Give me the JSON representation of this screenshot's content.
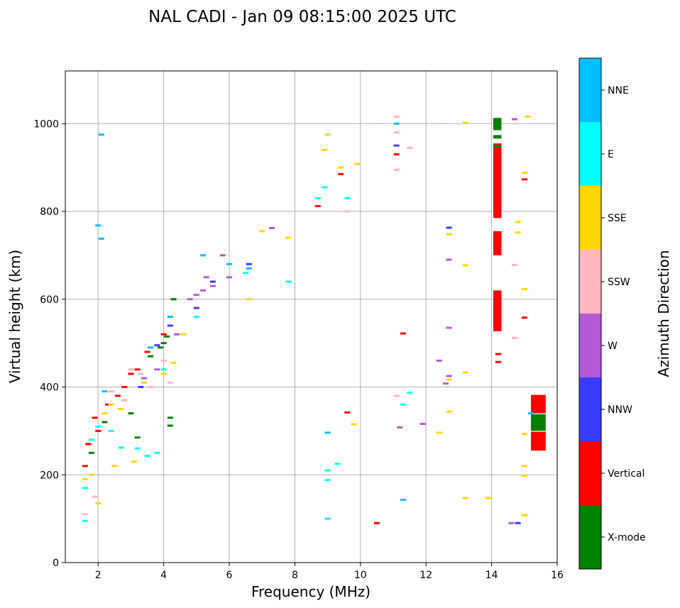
{
  "chart_data": {
    "type": "scatter",
    "title": "NAL CADI - Jan 09 08:15:00 2025 UTC",
    "xlabel": "Frequency (MHz)",
    "ylabel": "Virtual height (km)",
    "xlim": [
      1,
      16
    ],
    "ylim": [
      0,
      1120
    ],
    "xticks": [
      2,
      4,
      6,
      8,
      10,
      12,
      14,
      16
    ],
    "yticks": [
      0,
      200,
      400,
      600,
      800,
      1000
    ],
    "grid": true,
    "colorbar": {
      "title": "Azimuth Direction",
      "categories": [
        {
          "name": "X-mode",
          "color": "#008000"
        },
        {
          "name": "Vertical",
          "color": "#ff0000"
        },
        {
          "name": "NNW",
          "color": "#3a3aff"
        },
        {
          "name": "W",
          "color": "#b55ad6"
        },
        {
          "name": "SSW",
          "color": "#ffb6c1"
        },
        {
          "name": "SSE",
          "color": "#ffd700"
        },
        {
          "name": "E",
          "color": "#00ffff"
        },
        {
          "name": "NNE",
          "color": "#00bfff"
        }
      ]
    },
    "series": [
      {
        "name": "Vertical",
        "points": [
          [
            1.6,
            220
          ],
          [
            1.7,
            270
          ],
          [
            1.9,
            330
          ],
          [
            2.0,
            300
          ],
          [
            2.3,
            360
          ],
          [
            2.6,
            380
          ],
          [
            2.8,
            400
          ],
          [
            3.0,
            430
          ],
          [
            3.2,
            440
          ],
          [
            3.5,
            480
          ],
          [
            4.0,
            520
          ],
          [
            8.7,
            812
          ],
          [
            9.4,
            885
          ],
          [
            9.6,
            342
          ],
          [
            10.5,
            90
          ],
          [
            11.1,
            930
          ],
          [
            11.3,
            522
          ],
          [
            15.0,
            873
          ],
          [
            15.0,
            558
          ],
          [
            14.2,
            475
          ],
          [
            14.2,
            457
          ]
        ]
      },
      {
        "name": "X-mode",
        "points": [
          [
            1.8,
            250
          ],
          [
            2.2,
            320
          ],
          [
            2.8,
            370
          ],
          [
            3.0,
            340
          ],
          [
            3.2,
            285
          ],
          [
            3.6,
            470
          ],
          [
            3.9,
            490
          ],
          [
            4.0,
            500
          ],
          [
            4.1,
            515
          ],
          [
            4.2,
            330
          ],
          [
            4.2,
            312
          ],
          [
            4.3,
            600
          ]
        ]
      },
      {
        "name": "NNW",
        "points": [
          [
            3.3,
            400
          ],
          [
            3.8,
            495
          ],
          [
            4.2,
            540
          ],
          [
            5.0,
            580
          ],
          [
            5.5,
            640
          ],
          [
            6.6,
            680
          ],
          [
            11.1,
            950
          ],
          [
            12.7,
            763
          ],
          [
            14.8,
            90
          ]
        ]
      },
      {
        "name": "W",
        "points": [
          [
            3.4,
            420
          ],
          [
            3.8,
            440
          ],
          [
            4.4,
            520
          ],
          [
            4.8,
            600
          ],
          [
            5.0,
            610
          ],
          [
            5.2,
            620
          ],
          [
            5.3,
            650
          ],
          [
            5.5,
            630
          ],
          [
            5.8,
            700
          ],
          [
            6.0,
            650
          ],
          [
            7.3,
            762
          ],
          [
            12.4,
            460
          ],
          [
            12.7,
            690
          ],
          [
            12.7,
            535
          ],
          [
            12.7,
            425
          ],
          [
            12.6,
            408
          ],
          [
            11.9,
            316
          ],
          [
            11.2,
            308
          ],
          [
            14.7,
            1010
          ],
          [
            14.6,
            90
          ]
        ]
      },
      {
        "name": "SSW",
        "points": [
          [
            1.6,
            110
          ],
          [
            1.9,
            150
          ],
          [
            2.4,
            390
          ],
          [
            2.8,
            370
          ],
          [
            3.0,
            440
          ],
          [
            3.3,
            430
          ],
          [
            3.6,
            400
          ],
          [
            4.0,
            460
          ],
          [
            4.2,
            410
          ],
          [
            11.1,
            1016
          ],
          [
            11.1,
            980
          ],
          [
            11.1,
            895
          ],
          [
            11.1,
            380
          ],
          [
            11.5,
            945
          ],
          [
            9.6,
            800
          ],
          [
            14.7,
            678
          ],
          [
            14.7,
            512
          ]
        ]
      },
      {
        "name": "SSE",
        "points": [
          [
            1.6,
            190
          ],
          [
            1.8,
            200
          ],
          [
            2.0,
            135
          ],
          [
            2.2,
            340
          ],
          [
            2.4,
            360
          ],
          [
            2.5,
            220
          ],
          [
            2.7,
            350
          ],
          [
            3.1,
            230
          ],
          [
            3.4,
            410
          ],
          [
            4.0,
            430
          ],
          [
            4.3,
            455
          ],
          [
            4.6,
            520
          ],
          [
            6.6,
            600
          ],
          [
            7.0,
            755
          ],
          [
            7.8,
            740
          ],
          [
            8.9,
            940
          ],
          [
            9.0,
            975
          ],
          [
            9.4,
            900
          ],
          [
            9.8,
            315
          ],
          [
            9.9,
            908
          ],
          [
            12.4,
            296
          ],
          [
            12.7,
            748
          ],
          [
            12.7,
            417
          ],
          [
            12.7,
            344
          ],
          [
            13.2,
            1002
          ],
          [
            13.2,
            677
          ],
          [
            13.2,
            433
          ],
          [
            13.2,
            147
          ],
          [
            13.9,
            147
          ],
          [
            14.8,
            776
          ],
          [
            14.8,
            752
          ],
          [
            15.0,
            888
          ],
          [
            15.0,
            623
          ],
          [
            15.0,
            293
          ],
          [
            15.0,
            220
          ],
          [
            15.0,
            198
          ],
          [
            15.0,
            108
          ],
          [
            15.1,
            1016
          ]
        ]
      },
      {
        "name": "E",
        "points": [
          [
            1.6,
            95
          ],
          [
            1.6,
            170
          ],
          [
            1.8,
            280
          ],
          [
            2.0,
            310
          ],
          [
            2.4,
            300
          ],
          [
            2.7,
            262
          ],
          [
            3.2,
            260
          ],
          [
            3.5,
            243
          ],
          [
            3.8,
            250
          ],
          [
            4.0,
            440
          ],
          [
            5.0,
            560
          ],
          [
            6.5,
            660
          ],
          [
            7.8,
            640
          ],
          [
            8.7,
            830
          ],
          [
            8.9,
            855
          ],
          [
            9.0,
            210
          ],
          [
            9.0,
            188
          ],
          [
            9.0,
            100
          ],
          [
            9.3,
            225
          ],
          [
            9.6,
            830
          ],
          [
            11.3,
            360
          ],
          [
            11.5,
            387
          ]
        ]
      },
      {
        "name": "NNE",
        "points": [
          [
            2.1,
            975
          ],
          [
            2.1,
            738
          ],
          [
            2.0,
            768
          ],
          [
            2.2,
            390
          ],
          [
            3.6,
            490
          ],
          [
            4.2,
            560
          ],
          [
            5.2,
            700
          ],
          [
            6.0,
            680
          ],
          [
            6.6,
            670
          ],
          [
            9.0,
            296
          ],
          [
            11.1,
            1000
          ],
          [
            11.3,
            143
          ],
          [
            15.2,
            340
          ]
        ]
      }
    ],
    "bars": [
      {
        "x_range": [
          14.05,
          14.3
        ],
        "y_range": [
          785,
          955
        ],
        "category": "Vertical"
      },
      {
        "x_range": [
          14.05,
          14.3
        ],
        "y_range": [
          700,
          755
        ],
        "category": "Vertical"
      },
      {
        "x_range": [
          14.05,
          14.3
        ],
        "y_range": [
          527,
          620
        ],
        "category": "Vertical"
      },
      {
        "x_range": [
          14.05,
          14.3
        ],
        "y_range": [
          985,
          1013
        ],
        "category": "X-mode"
      },
      {
        "x_range": [
          14.05,
          14.3
        ],
        "y_range": [
          945,
          952
        ],
        "category": "X-mode"
      },
      {
        "x_range": [
          14.05,
          14.3
        ],
        "y_range": [
          966,
          974
        ],
        "category": "X-mode"
      },
      {
        "x_range": [
          15.2,
          15.65
        ],
        "y_range": [
          340,
          382
        ],
        "category": "Vertical"
      },
      {
        "x_range": [
          15.2,
          15.65
        ],
        "y_range": [
          300,
          338
        ],
        "category": "X-mode"
      },
      {
        "x_range": [
          15.2,
          15.65
        ],
        "y_range": [
          255,
          298
        ],
        "category": "Vertical"
      }
    ]
  }
}
